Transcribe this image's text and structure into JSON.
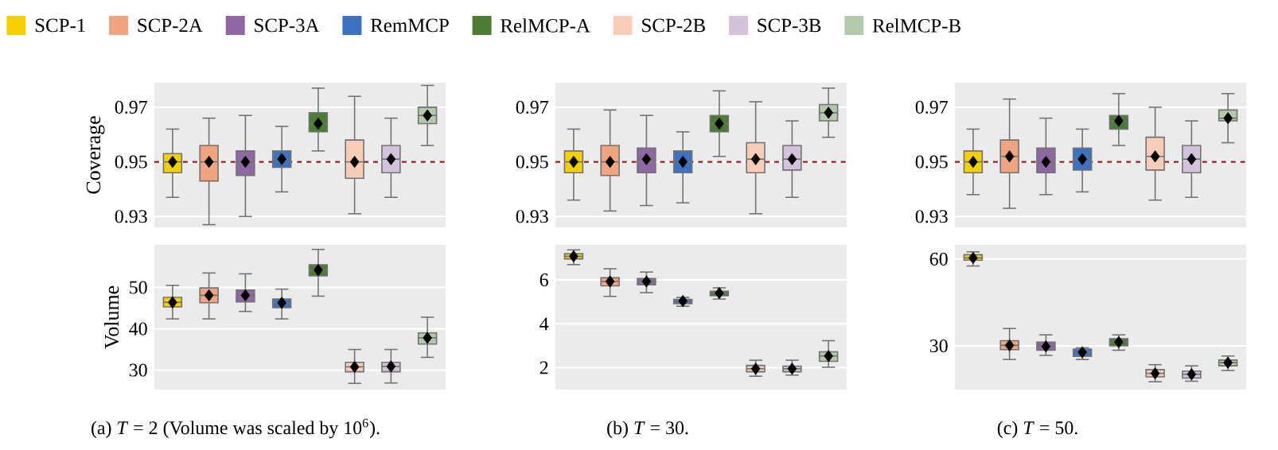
{
  "chart_data": [
    {
      "type": "box",
      "ylabel": "Coverage",
      "categories": [
        null,
        null,
        null,
        null,
        null,
        null,
        null,
        null
      ],
      "ylim": [
        0.926,
        0.979
      ],
      "yticks": [
        0.93,
        0.95,
        0.97
      ],
      "grid": "y",
      "legend": "top",
      "marker": "diamond",
      "tick_labels": "y",
      "ref_lines": [
        {
          "axis": "y",
          "value": 0.95,
          "color": "#9e1b1b",
          "line_style": "dashed"
        }
      ],
      "series": [
        {
          "name": "SCP-1",
          "color": "#f5d000",
          "boxes": [
            {
              "low": 0.937,
              "q1": 0.946,
              "median": 0.95,
              "q3": 0.953,
              "high": 0.962,
              "mean": 0.95
            },
            null,
            null,
            null,
            null,
            null,
            null,
            null
          ]
        },
        {
          "name": "SCP-2A",
          "color": "#f0a47f",
          "boxes": [
            null,
            {
              "low": 0.927,
              "q1": 0.943,
              "median": 0.95,
              "q3": 0.956,
              "high": 0.966,
              "mean": 0.95
            },
            null,
            null,
            null,
            null,
            null,
            null
          ]
        },
        {
          "name": "SCP-3A",
          "color": "#8f67a3",
          "boxes": [
            null,
            null,
            {
              "low": 0.93,
              "q1": 0.945,
              "median": 0.95,
              "q3": 0.954,
              "high": 0.967,
              "mean": 0.95
            },
            null,
            null,
            null,
            null,
            null
          ]
        },
        {
          "name": "RemMCP",
          "color": "#3d71c2",
          "boxes": [
            null,
            null,
            null,
            {
              "low": 0.939,
              "q1": 0.948,
              "median": 0.951,
              "q3": 0.954,
              "high": 0.963,
              "mean": 0.951
            },
            null,
            null,
            null,
            null
          ]
        },
        {
          "name": "RelMCP-A",
          "color": "#4b7d35",
          "boxes": [
            null,
            null,
            null,
            null,
            {
              "low": 0.954,
              "q1": 0.961,
              "median": 0.964,
              "q3": 0.968,
              "high": 0.977,
              "mean": 0.964
            },
            null,
            null,
            null
          ]
        },
        {
          "name": "SCP-2B",
          "color": "#f7cdb8",
          "boxes": [
            null,
            null,
            null,
            null,
            null,
            {
              "low": 0.931,
              "q1": 0.944,
              "median": 0.95,
              "q3": 0.958,
              "high": 0.974,
              "mean": 0.95
            },
            null,
            null
          ]
        },
        {
          "name": "SCP-3B",
          "color": "#d2c2dc",
          "boxes": [
            null,
            null,
            null,
            null,
            null,
            null,
            {
              "low": 0.937,
              "q1": 0.946,
              "median": 0.951,
              "q3": 0.956,
              "high": 0.966,
              "mean": 0.951
            },
            null
          ]
        },
        {
          "name": "RelMCP-B",
          "color": "#b4c9a9",
          "boxes": [
            null,
            null,
            null,
            null,
            null,
            null,
            null,
            {
              "low": 0.956,
              "q1": 0.964,
              "median": 0.967,
              "q3": 0.97,
              "high": 0.978,
              "mean": 0.967
            }
          ]
        }
      ]
    },
    {
      "type": "box",
      "categories": [
        null,
        null,
        null,
        null,
        null,
        null,
        null,
        null
      ],
      "ylim": [
        0.926,
        0.979
      ],
      "yticks": [
        0.93,
        0.95,
        0.97
      ],
      "grid": "y",
      "marker": "diamond",
      "tick_labels": "y",
      "ref_lines": [
        {
          "axis": "y",
          "value": 0.95,
          "color": "#9e1b1b",
          "line_style": "dashed"
        }
      ],
      "series": [
        {
          "color": "#f5d000",
          "boxes": [
            {
              "low": 0.936,
              "q1": 0.946,
              "median": 0.95,
              "q3": 0.954,
              "high": 0.962,
              "mean": 0.95
            },
            null,
            null,
            null,
            null,
            null,
            null,
            null
          ]
        },
        {
          "color": "#f0a47f",
          "boxes": [
            null,
            {
              "low": 0.932,
              "q1": 0.945,
              "median": 0.95,
              "q3": 0.956,
              "high": 0.969,
              "mean": 0.95
            },
            null,
            null,
            null,
            null,
            null,
            null
          ]
        },
        {
          "color": "#8f67a3",
          "boxes": [
            null,
            null,
            {
              "low": 0.934,
              "q1": 0.946,
              "median": 0.951,
              "q3": 0.955,
              "high": 0.967,
              "mean": 0.951
            },
            null,
            null,
            null,
            null,
            null
          ]
        },
        {
          "color": "#3d71c2",
          "boxes": [
            null,
            null,
            null,
            {
              "low": 0.935,
              "q1": 0.946,
              "median": 0.95,
              "q3": 0.954,
              "high": 0.961,
              "mean": 0.95
            },
            null,
            null,
            null,
            null
          ]
        },
        {
          "color": "#4b7d35",
          "boxes": [
            null,
            null,
            null,
            null,
            {
              "low": 0.952,
              "q1": 0.961,
              "median": 0.964,
              "q3": 0.967,
              "high": 0.976,
              "mean": 0.964
            },
            null,
            null,
            null
          ]
        },
        {
          "color": "#f7cdb8",
          "boxes": [
            null,
            null,
            null,
            null,
            null,
            {
              "low": 0.931,
              "q1": 0.946,
              "median": 0.951,
              "q3": 0.957,
              "high": 0.972,
              "mean": 0.951
            },
            null,
            null
          ]
        },
        {
          "color": "#d2c2dc",
          "boxes": [
            null,
            null,
            null,
            null,
            null,
            null,
            {
              "low": 0.937,
              "q1": 0.947,
              "median": 0.951,
              "q3": 0.956,
              "high": 0.965,
              "mean": 0.951
            },
            null
          ]
        },
        {
          "color": "#b4c9a9",
          "boxes": [
            null,
            null,
            null,
            null,
            null,
            null,
            null,
            {
              "low": 0.959,
              "q1": 0.965,
              "median": 0.968,
              "q3": 0.971,
              "high": 0.977,
              "mean": 0.968
            }
          ]
        }
      ]
    },
    {
      "type": "box",
      "categories": [
        null,
        null,
        null,
        null,
        null,
        null,
        null,
        null
      ],
      "ylim": [
        0.926,
        0.979
      ],
      "yticks": [
        0.93,
        0.95,
        0.97
      ],
      "grid": "y",
      "marker": "diamond",
      "tick_labels": "y",
      "ref_lines": [
        {
          "axis": "y",
          "value": 0.95,
          "color": "#9e1b1b",
          "line_style": "dashed"
        }
      ],
      "series": [
        {
          "color": "#f5d000",
          "boxes": [
            {
              "low": 0.938,
              "q1": 0.946,
              "median": 0.95,
              "q3": 0.954,
              "high": 0.962,
              "mean": 0.95
            },
            null,
            null,
            null,
            null,
            null,
            null,
            null
          ]
        },
        {
          "color": "#f0a47f",
          "boxes": [
            null,
            {
              "low": 0.933,
              "q1": 0.946,
              "median": 0.952,
              "q3": 0.958,
              "high": 0.973,
              "mean": 0.952
            },
            null,
            null,
            null,
            null,
            null,
            null
          ]
        },
        {
          "color": "#8f67a3",
          "boxes": [
            null,
            null,
            {
              "low": 0.938,
              "q1": 0.946,
              "median": 0.95,
              "q3": 0.955,
              "high": 0.966,
              "mean": 0.95
            },
            null,
            null,
            null,
            null,
            null
          ]
        },
        {
          "color": "#3d71c2",
          "boxes": [
            null,
            null,
            null,
            {
              "low": 0.939,
              "q1": 0.947,
              "median": 0.951,
              "q3": 0.955,
              "high": 0.962,
              "mean": 0.951
            },
            null,
            null,
            null,
            null
          ]
        },
        {
          "color": "#4b7d35",
          "boxes": [
            null,
            null,
            null,
            null,
            {
              "low": 0.956,
              "q1": 0.962,
              "median": 0.965,
              "q3": 0.967,
              "high": 0.975,
              "mean": 0.965
            },
            null,
            null,
            null
          ]
        },
        {
          "color": "#f7cdb8",
          "boxes": [
            null,
            null,
            null,
            null,
            null,
            {
              "low": 0.936,
              "q1": 0.947,
              "median": 0.952,
              "q3": 0.959,
              "high": 0.97,
              "mean": 0.952
            },
            null,
            null
          ]
        },
        {
          "color": "#d2c2dc",
          "boxes": [
            null,
            null,
            null,
            null,
            null,
            null,
            {
              "low": 0.937,
              "q1": 0.946,
              "median": 0.951,
              "q3": 0.956,
              "high": 0.965,
              "mean": 0.951
            },
            null
          ]
        },
        {
          "color": "#b4c9a9",
          "boxes": [
            null,
            null,
            null,
            null,
            null,
            null,
            null,
            {
              "low": 0.957,
              "q1": 0.965,
              "median": 0.966,
              "q3": 0.969,
              "high": 0.975,
              "mean": 0.966
            }
          ]
        }
      ]
    },
    {
      "type": "box",
      "ylabel": "Volume",
      "categories": [
        null,
        null,
        null,
        null,
        null,
        null,
        null,
        null
      ],
      "ylim": [
        25.3,
        60.3
      ],
      "yticks": [
        30,
        40,
        50
      ],
      "grid": "y",
      "marker": "diamond",
      "tick_labels": "y",
      "annotations": [
        "(a) *T* = 2 (Volume was scaled by 10$^{6}$)."
      ],
      "series": [
        {
          "color": "#f5d000",
          "boxes": [
            {
              "low": 42.4,
              "q1": 45.3,
              "median": 46.4,
              "q3": 47.6,
              "high": 50.5,
              "mean": 46.4
            },
            null,
            null,
            null,
            null,
            null,
            null,
            null
          ]
        },
        {
          "color": "#f0a47f",
          "boxes": [
            null,
            {
              "low": 42.4,
              "q1": 46.3,
              "median": 48.1,
              "q3": 49.9,
              "high": 53.5,
              "mean": 48.1
            },
            null,
            null,
            null,
            null,
            null,
            null
          ]
        },
        {
          "color": "#8f67a3",
          "boxes": [
            null,
            null,
            {
              "low": 44.2,
              "q1": 46.5,
              "median": 48.1,
              "q3": 49.4,
              "high": 53.3,
              "mean": 48.1
            },
            null,
            null,
            null,
            null,
            null
          ]
        },
        {
          "color": "#3d71c2",
          "boxes": [
            null,
            null,
            null,
            {
              "low": 42.4,
              "q1": 45.1,
              "median": 46.3,
              "q3": 47.2,
              "high": 49.6,
              "mean": 46.3
            },
            null,
            null,
            null,
            null
          ]
        },
        {
          "color": "#4b7d35",
          "boxes": [
            null,
            null,
            null,
            null,
            {
              "low": 47.9,
              "q1": 52.8,
              "median": 54.2,
              "q3": 55.5,
              "high": 59.2,
              "mean": 54.2
            },
            null,
            null,
            null
          ]
        },
        {
          "color": "#f7cdb8",
          "boxes": [
            null,
            null,
            null,
            null,
            null,
            {
              "low": 26.8,
              "q1": 29.6,
              "median": 30.8,
              "q3": 31.9,
              "high": 35.0,
              "mean": 30.8
            },
            null,
            null
          ]
        },
        {
          "color": "#d2c2dc",
          "boxes": [
            null,
            null,
            null,
            null,
            null,
            null,
            {
              "low": 26.9,
              "q1": 29.6,
              "median": 30.9,
              "q3": 31.9,
              "high": 35.0,
              "mean": 30.9
            },
            null
          ]
        },
        {
          "color": "#b4c9a9",
          "boxes": [
            null,
            null,
            null,
            null,
            null,
            null,
            null,
            {
              "low": 33.1,
              "q1": 36.3,
              "median": 37.8,
              "q3": 39.0,
              "high": 42.8,
              "mean": 37.8
            }
          ]
        }
      ]
    },
    {
      "type": "box",
      "categories": [
        null,
        null,
        null,
        null,
        null,
        null,
        null,
        null
      ],
      "ylim": [
        1.0,
        7.6
      ],
      "yticks": [
        2,
        4,
        6
      ],
      "grid": "y",
      "marker": "diamond",
      "tick_labels": "y",
      "annotations": [
        "(b) *T* = 30."
      ],
      "series": [
        {
          "color": "#f5d000",
          "boxes": [
            {
              "low": 6.7,
              "q1": 6.96,
              "median": 7.08,
              "q3": 7.2,
              "high": 7.37,
              "mean": 7.08
            },
            null,
            null,
            null,
            null,
            null,
            null,
            null
          ]
        },
        {
          "color": "#f0a47f",
          "boxes": [
            null,
            {
              "low": 5.25,
              "q1": 5.73,
              "median": 5.93,
              "q3": 6.1,
              "high": 6.51,
              "mean": 5.93
            },
            null,
            null,
            null,
            null,
            null,
            null
          ]
        },
        {
          "color": "#8f67a3",
          "boxes": [
            null,
            null,
            {
              "low": 5.42,
              "q1": 5.78,
              "median": 5.93,
              "q3": 6.07,
              "high": 6.36,
              "mean": 5.93
            },
            null,
            null,
            null,
            null,
            null
          ]
        },
        {
          "color": "#3d71c2",
          "boxes": [
            null,
            null,
            null,
            {
              "low": 4.8,
              "q1": 4.92,
              "median": 5.04,
              "q3": 5.11,
              "high": 5.2,
              "mean": 5.04
            },
            null,
            null,
            null,
            null
          ]
        },
        {
          "color": "#4b7d35",
          "boxes": [
            null,
            null,
            null,
            null,
            {
              "low": 5.13,
              "q1": 5.28,
              "median": 5.4,
              "q3": 5.49,
              "high": 5.64,
              "mean": 5.4
            },
            null,
            null,
            null
          ]
        },
        {
          "color": "#f7cdb8",
          "boxes": [
            null,
            null,
            null,
            null,
            null,
            {
              "low": 1.61,
              "q1": 1.81,
              "median": 1.95,
              "q3": 2.1,
              "high": 2.34,
              "mean": 1.95
            },
            null,
            null
          ]
        },
        {
          "color": "#d2c2dc",
          "boxes": [
            null,
            null,
            null,
            null,
            null,
            null,
            {
              "low": 1.66,
              "q1": 1.81,
              "median": 1.95,
              "q3": 2.07,
              "high": 2.34,
              "mean": 1.95
            },
            null
          ]
        },
        {
          "color": "#b4c9a9",
          "boxes": [
            null,
            null,
            null,
            null,
            null,
            null,
            null,
            {
              "low": 2.02,
              "q1": 2.29,
              "median": 2.53,
              "q3": 2.72,
              "high": 3.23,
              "mean": 2.53
            }
          ]
        }
      ]
    },
    {
      "type": "box",
      "categories": [
        null,
        null,
        null,
        null,
        null,
        null,
        null,
        null
      ],
      "ylim": [
        14.9,
        64.9
      ],
      "yticks": [
        30,
        60
      ],
      "grid": "y",
      "marker": "diamond",
      "tick_labels": "y",
      "annotations": [
        "(c) *T* = 50."
      ],
      "series": [
        {
          "color": "#f5d000",
          "boxes": [
            {
              "low": 57.6,
              "q1": 59.6,
              "median": 60.4,
              "q3": 61.5,
              "high": 62.5,
              "mean": 60.4
            },
            null,
            null,
            null,
            null,
            null,
            null,
            null
          ]
        },
        {
          "color": "#f0a47f",
          "boxes": [
            null,
            {
              "low": 25.3,
              "q1": 28.7,
              "median": 30.2,
              "q3": 31.8,
              "high": 36.0,
              "mean": 30.2
            },
            null,
            null,
            null,
            null,
            null,
            null
          ]
        },
        {
          "color": "#8f67a3",
          "boxes": [
            null,
            null,
            {
              "low": 26.7,
              "q1": 28.5,
              "median": 29.8,
              "q3": 31.3,
              "high": 33.8,
              "mean": 29.8
            },
            null,
            null,
            null,
            null,
            null
          ]
        },
        {
          "color": "#3d71c2",
          "boxes": [
            null,
            null,
            null,
            {
              "low": 25.3,
              "q1": 26.4,
              "median": 27.8,
              "q3": 28.9,
              "high": 29.3,
              "mean": 27.8
            },
            null,
            null,
            null,
            null
          ]
        },
        {
          "color": "#4b7d35",
          "boxes": [
            null,
            null,
            null,
            null,
            {
              "low": 28.5,
              "q1": 30.0,
              "median": 31.3,
              "q3": 32.5,
              "high": 33.8,
              "mean": 31.3
            },
            null,
            null,
            null
          ]
        },
        {
          "color": "#f7cdb8",
          "boxes": [
            null,
            null,
            null,
            null,
            null,
            {
              "low": 17.6,
              "q1": 19.3,
              "median": 20.5,
              "q3": 21.8,
              "high": 23.5,
              "mean": 20.5
            },
            null,
            null
          ]
        },
        {
          "color": "#d2c2dc",
          "boxes": [
            null,
            null,
            null,
            null,
            null,
            null,
            {
              "low": 17.8,
              "q1": 18.9,
              "median": 20.2,
              "q3": 21.3,
              "high": 23.1,
              "mean": 20.2
            },
            null
          ]
        },
        {
          "color": "#b4c9a9",
          "boxes": [
            null,
            null,
            null,
            null,
            null,
            null,
            null,
            {
              "low": 21.5,
              "q1": 23.1,
              "median": 24.2,
              "q3": 25.1,
              "high": 26.5,
              "mean": 24.2
            }
          ]
        }
      ]
    }
  ]
}
